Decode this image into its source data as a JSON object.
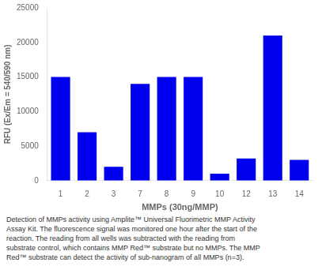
{
  "chart_data": {
    "type": "bar",
    "categories": [
      "1",
      "2",
      "3",
      "7",
      "8",
      "9",
      "10",
      "12",
      "13",
      "14"
    ],
    "values": [
      15000,
      7000,
      2000,
      14000,
      15000,
      15000,
      1000,
      3200,
      21000,
      3000
    ],
    "color": "#0000EE",
    "xlabel": "MMPs (30ng/MMP)",
    "ylabel": "RFU (Ex/Em = 540/590 nm)",
    "ylim": [
      0,
      25000
    ],
    "yticks": [
      0,
      5000,
      10000,
      15000,
      20000,
      25000
    ],
    "grid": false,
    "caption": [
      "Detection of MMPs activity using Amplite™ Universal Fluorimetric MMP Activity",
      "Assay Kit. The fluorescence signal was monitored one hour after the start of the",
      "reaction. The reading from all wells was subtracted with the reading from",
      "substrate control, which contains MMP Red™ substrate but no MMPs. The MMP",
      "Red™ substrate can detect the activity of sub-nanogram of all MMPs (n=3)."
    ]
  }
}
